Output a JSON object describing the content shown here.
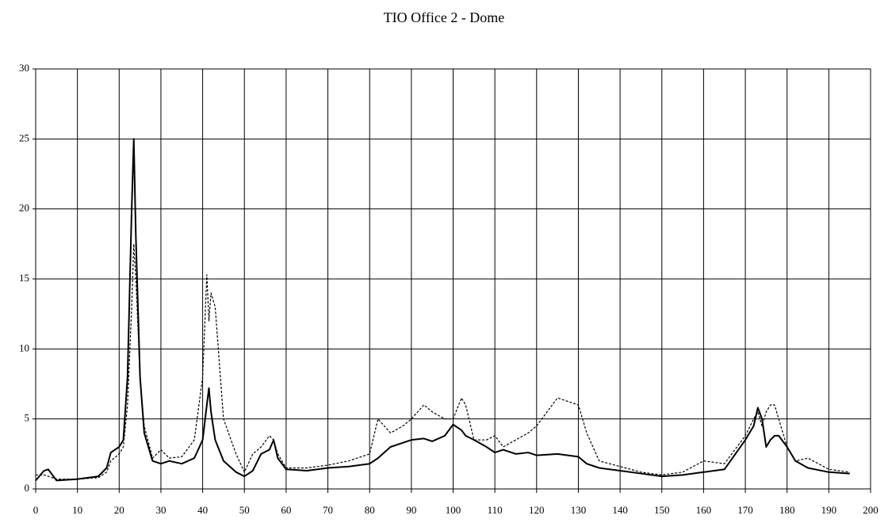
{
  "chart_data": {
    "type": "line",
    "title": "TIO Office 2 - Dome",
    "x": [
      0,
      2,
      3,
      5,
      10,
      15,
      17,
      18,
      20,
      21,
      22,
      23,
      23.5,
      24,
      25,
      26,
      28,
      30,
      32,
      35,
      38,
      40,
      41,
      41.5,
      42,
      43,
      45,
      48,
      50,
      52,
      54,
      56,
      57,
      58,
      60,
      65,
      70,
      75,
      80,
      82,
      85,
      88,
      90,
      93,
      95,
      98,
      100,
      102,
      103,
      105,
      108,
      110,
      112,
      115,
      118,
      120,
      125,
      130,
      132,
      135,
      140,
      145,
      150,
      155,
      160,
      165,
      170,
      172,
      173,
      174,
      175,
      176,
      177,
      178,
      180,
      182,
      185,
      190,
      195
    ],
    "series": [
      {
        "color": "#000000",
        "dash": false,
        "values": [
          0.6,
          1.3,
          1.4,
          0.6,
          0.7,
          0.9,
          1.5,
          2.6,
          3.0,
          3.5,
          8,
          20,
          25,
          18,
          8,
          4,
          2,
          1.8,
          2.0,
          1.8,
          2.2,
          3.5,
          6,
          7.2,
          5.5,
          3.5,
          2,
          1.2,
          0.9,
          1.3,
          2.5,
          2.8,
          3.5,
          2.2,
          1.4,
          1.3,
          1.5,
          1.6,
          1.8,
          2.2,
          3,
          3.3,
          3.5,
          3.6,
          3.4,
          3.8,
          4.6,
          4.2,
          3.8,
          3.5,
          3,
          2.6,
          2.8,
          2.5,
          2.6,
          2.4,
          2.5,
          2.3,
          1.8,
          1.5,
          1.3,
          1.1,
          0.9,
          1.0,
          1.2,
          1.4,
          3.5,
          4.5,
          5.8,
          5,
          3,
          3.5,
          3.8,
          3.8,
          3,
          2,
          1.5,
          1.2,
          1.1
        ]
      },
      {
        "color": "#000000",
        "dash": true,
        "values": [
          1.0,
          1.0,
          0.9,
          0.7,
          0.7,
          0.8,
          1.2,
          2,
          2.5,
          3,
          6,
          13,
          17.5,
          15,
          8,
          4.5,
          2.2,
          2.8,
          2.2,
          2.3,
          3.5,
          8,
          15.3,
          12,
          14,
          13,
          5,
          2.5,
          1.2,
          2.5,
          3,
          3.8,
          3.5,
          2.5,
          1.5,
          1.5,
          1.7,
          2,
          2.5,
          5,
          4,
          4.5,
          5,
          6,
          5.5,
          5,
          5,
          6.5,
          6,
          3.5,
          3.5,
          3.8,
          3,
          3.5,
          4,
          4.5,
          6.5,
          6,
          4,
          2,
          1.6,
          1.2,
          1,
          1.2,
          2,
          1.8,
          3.8,
          5,
          5.5,
          4.5,
          5.5,
          6,
          6,
          5,
          3,
          2,
          2.2,
          1.4,
          1.2
        ]
      }
    ],
    "xlim": [
      0,
      200
    ],
    "xticks": [
      0,
      10,
      20,
      30,
      40,
      50,
      60,
      70,
      80,
      90,
      100,
      110,
      120,
      130,
      140,
      150,
      160,
      170,
      180,
      190,
      200
    ],
    "ylim": [
      0,
      30
    ],
    "yticks": [
      0,
      5,
      10,
      15,
      20,
      25,
      30
    ],
    "grid": true
  }
}
